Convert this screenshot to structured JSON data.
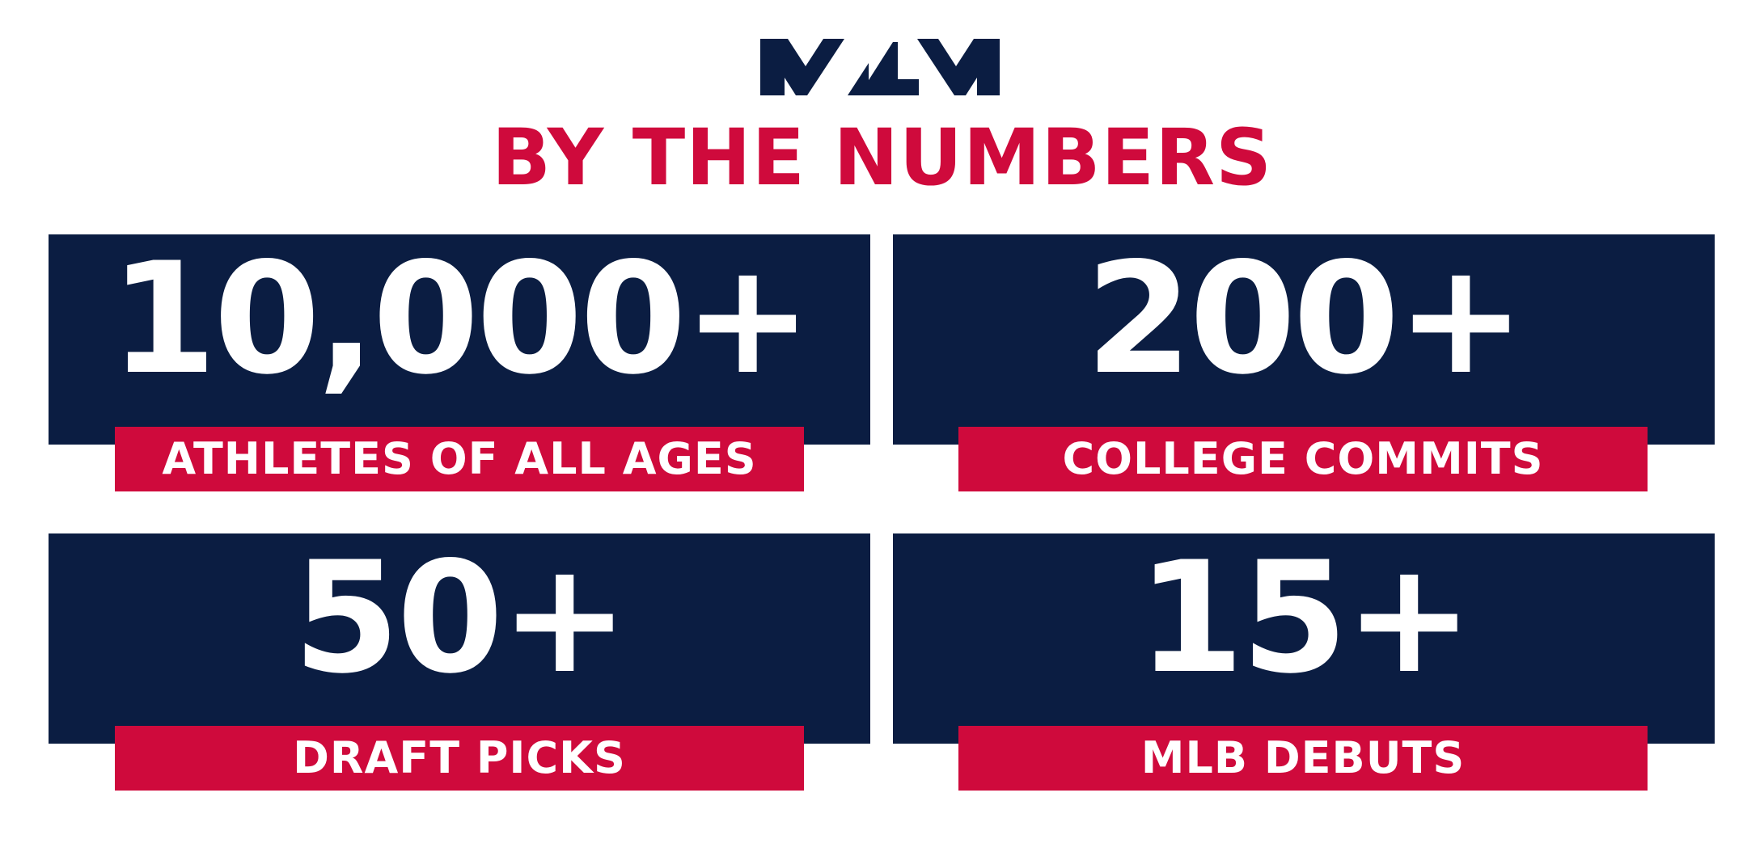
{
  "logo": {
    "icon": "mlm-logo-icon",
    "color": "#0b1d42",
    "text": "MLM"
  },
  "headline": "BY THE NUMBERS",
  "colors": {
    "accent_red": "#cf0a3c",
    "navy": "#0b1d42",
    "white": "#ffffff"
  },
  "stats": [
    {
      "value": "10,000+",
      "label": "ATHLETES OF ALL AGES"
    },
    {
      "value": "200+",
      "label": "COLLEGE COMMITS"
    },
    {
      "value": "50+",
      "label": "DRAFT PICKS"
    },
    {
      "value": "15+",
      "label": "MLB DEBUTS"
    }
  ]
}
